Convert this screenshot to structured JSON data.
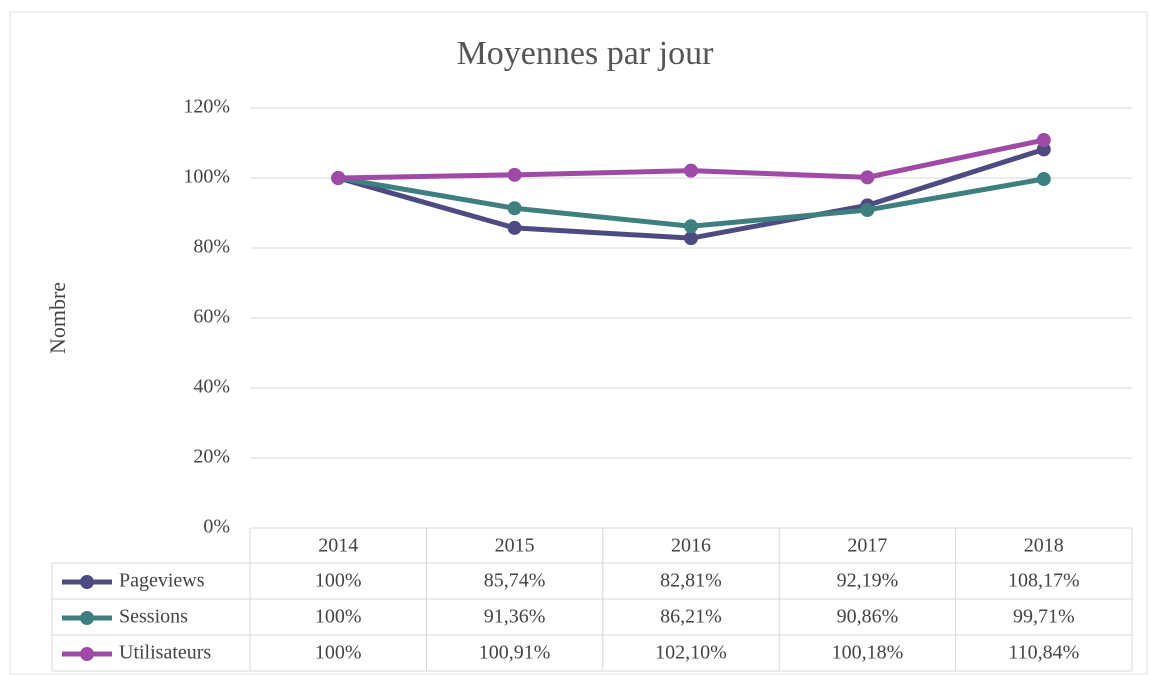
{
  "chart_data": {
    "type": "line",
    "title": "Moyennes par jour",
    "ylabel": "Nombre",
    "categories": [
      "2014",
      "2015",
      "2016",
      "2017",
      "2018"
    ],
    "series": [
      {
        "name": "Pageviews",
        "color": "#4e4a82",
        "values": [
          100,
          85.74,
          82.81,
          92.19,
          108.17
        ],
        "value_labels": [
          "100%",
          "85,74%",
          "82,81%",
          "92,19%",
          "108,17%"
        ]
      },
      {
        "name": "Sessions",
        "color": "#3e8080",
        "values": [
          100,
          91.36,
          86.21,
          90.86,
          99.71
        ],
        "value_labels": [
          "100%",
          "91,36%",
          "86,21%",
          "90,86%",
          "99,71%"
        ]
      },
      {
        "name": "Utilisateurs",
        "color": "#a04aa8",
        "values": [
          100,
          100.91,
          102.1,
          100.18,
          110.84
        ],
        "value_labels": [
          "100%",
          "100,91%",
          "102,10%",
          "100,18%",
          "110,84%"
        ]
      }
    ],
    "ylim": [
      0,
      120
    ],
    "yticks": [
      {
        "value": 0,
        "label": "0%"
      },
      {
        "value": 20,
        "label": "20%"
      },
      {
        "value": 40,
        "label": "40%"
      },
      {
        "value": 60,
        "label": "60%"
      },
      {
        "value": 80,
        "label": "80%"
      },
      {
        "value": 100,
        "label": "100%"
      },
      {
        "value": 120,
        "label": "120%"
      }
    ],
    "grid": true
  }
}
